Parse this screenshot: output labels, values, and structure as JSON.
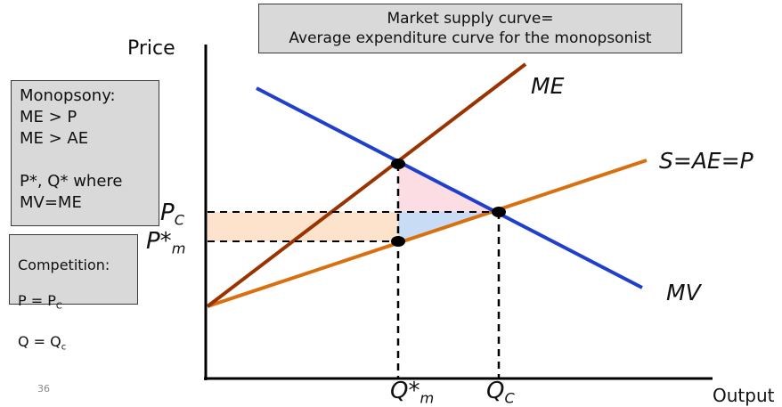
{
  "title_box": "Market supply curve=\nAverage expenditure curve for the monopsonist",
  "monopsony_box": "Monopsony:\nME > P\nME > AE\n\nP*, Q* where\nMV=ME",
  "competition_box": {
    "heading": "Competition:",
    "line1": "P = P",
    "line1_sub": "C",
    "line2": "Q = Q",
    "line2_sub": "c"
  },
  "axes": {
    "y_label": "Price",
    "x_label": "Output"
  },
  "curves": {
    "me": "ME",
    "supply": "S=AE=P",
    "mv": "MV"
  },
  "price_ticks": {
    "pc": "P",
    "pc_sub": "C",
    "pm": "P*",
    "pm_sub": "m"
  },
  "quantity_ticks": {
    "qm": "Q*",
    "qm_sub": "m",
    "qc": "Q",
    "qc_sub": "C"
  },
  "slide_number": "36",
  "colors": {
    "me_curve": "#993300",
    "supply_curve": "#d9700f",
    "mv_curve": "#1f3fcc",
    "deadweight_upper": "#fbdde3",
    "deadweight_lower": "#c9dcf5",
    "transfer_rect": "#fde3cc",
    "box_fill": "#d9d9d9"
  }
}
